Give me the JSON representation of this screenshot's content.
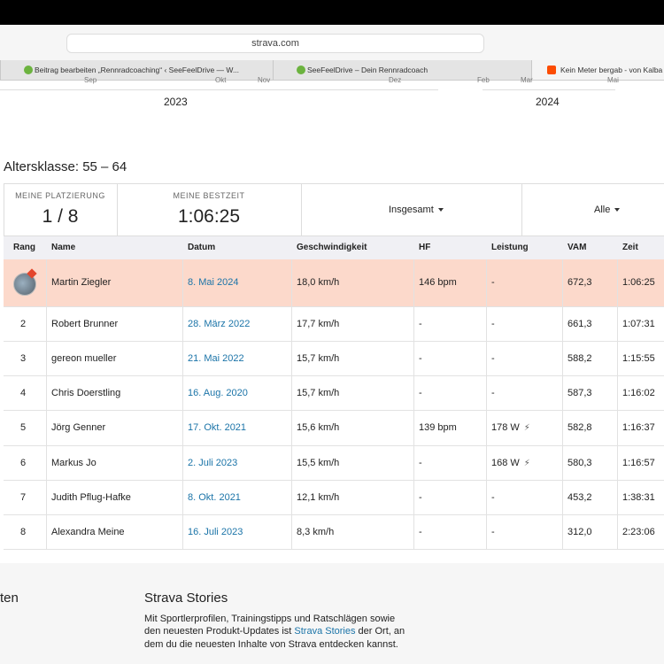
{
  "browser": {
    "url": "strava.com",
    "tabs": [
      "Beitrag bearbeiten „Rennradcoaching“ ‹ SeeFeelDrive — W...",
      "SeeFeelDrive – Dein Rennradcoach",
      "Kein Meter bergab - von Kalba"
    ]
  },
  "timeline": {
    "months": [
      "Sep",
      "Okt",
      "Nov",
      "Dez",
      "Feb",
      "Mar",
      "Mai"
    ],
    "years": [
      "2023",
      "2024"
    ]
  },
  "heading": "Altersklasse: 55 – 64",
  "stats": {
    "placement_label": "MEINE PLATZIERUNG",
    "placement": "1 / 8",
    "best_label": "MEINE BESTZEIT",
    "best": "1:06:25",
    "filter1": "Insgesamt",
    "filter2": "Alle"
  },
  "table": {
    "columns": [
      "Rang",
      "Name",
      "Datum",
      "Geschwindigkeit",
      "HF",
      "Leistung",
      "VAM",
      "Zeit"
    ],
    "rows": [
      [
        null,
        "Martin Ziegler",
        "8. Mai 2024",
        "18,0 km/h",
        "146 bpm",
        "-",
        "672,3",
        "1:06:25"
      ],
      [
        "2",
        "Robert Brunner",
        "28. März 2022",
        "17,7 km/h",
        "-",
        "-",
        "661,3",
        "1:07:31"
      ],
      [
        "3",
        "gereon mueller",
        "21. Mai 2022",
        "15,7 km/h",
        "-",
        "-",
        "588,2",
        "1:15:55"
      ],
      [
        "4",
        "Chris Doerstling",
        "16. Aug. 2020",
        "15,7 km/h",
        "-",
        "-",
        "587,3",
        "1:16:02"
      ],
      [
        "5",
        "Jörg Genner",
        "17. Okt. 2021",
        "15,6 km/h",
        "139 bpm",
        "178 W",
        "582,8",
        "1:16:37"
      ],
      [
        "6",
        "Markus Jo",
        "2. Juli 2023",
        "15,5 km/h",
        "-",
        "168 W",
        "580,3",
        "1:16:57"
      ],
      [
        "7",
        "Judith Pflug-Hafke",
        "8. Okt. 2021",
        "12,1 km/h",
        "-",
        "-",
        "453,2",
        "1:38:31"
      ],
      [
        "8",
        "Alexandra Meine",
        "16. Juli 2023",
        "8,3 km/h",
        "-",
        "-",
        "312,0",
        "2:23:06"
      ]
    ]
  },
  "footer": {
    "left_fragment": "ten",
    "stories_title": "Strava Stories",
    "stories_text_1": "Mit Sportlerprofilen, Trainingstipps und Ratschlägen sowie den neuesten Produkt-Updates ist ",
    "stories_link": "Strava Stories",
    "stories_text_2": " der Ort, an dem du die neuesten Inhalte von Strava entdecken kannst."
  }
}
